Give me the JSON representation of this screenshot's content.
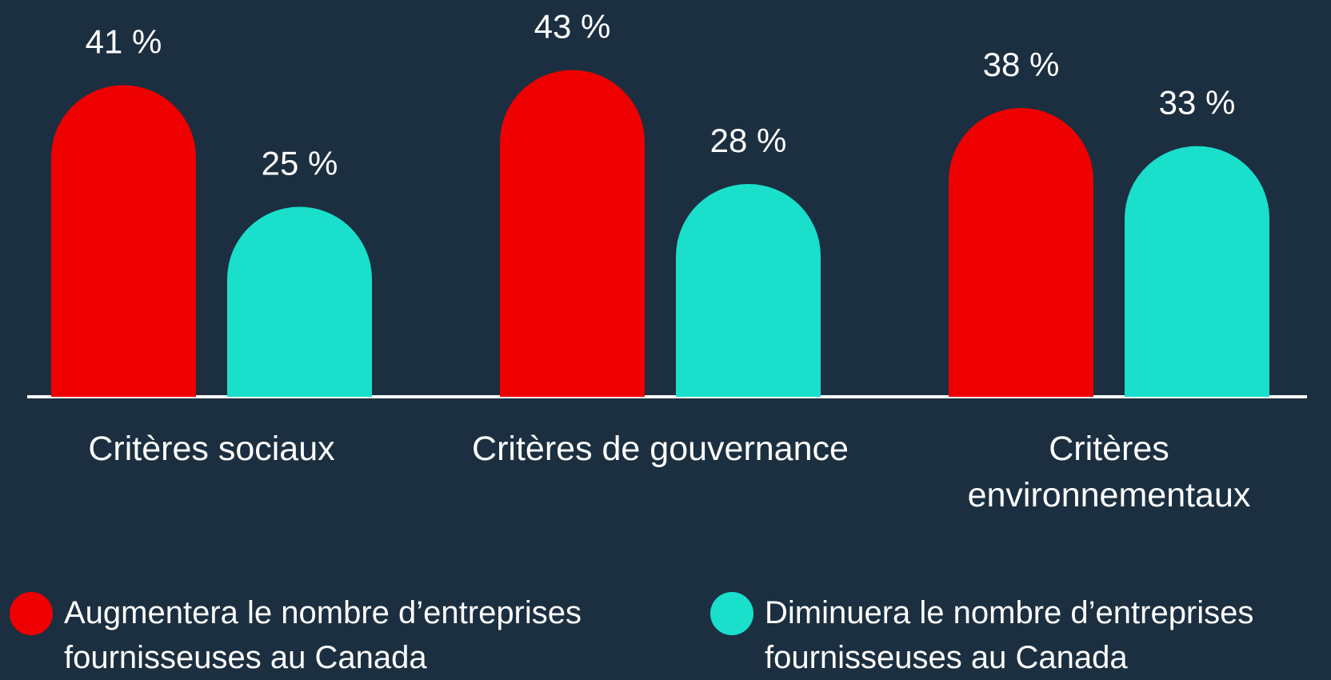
{
  "chart_data": {
    "type": "bar",
    "categories": [
      "Critères sociaux",
      "Critères de gouvernance",
      "Critères environnementaux"
    ],
    "series": [
      {
        "name": "Augmentera le nombre d’entreprises fournisseuses au Canada",
        "color": "#ee0000",
        "values": [
          41,
          43,
          38
        ],
        "value_labels": [
          "41 %",
          "43 %",
          "38 %"
        ]
      },
      {
        "name": "Diminuera le nombre d’entreprises fournisseuses au Canada",
        "color": "#19dfcb",
        "values": [
          25,
          28,
          33
        ],
        "value_labels": [
          "25 %",
          "28 %",
          "33 %"
        ]
      }
    ]
  }
}
